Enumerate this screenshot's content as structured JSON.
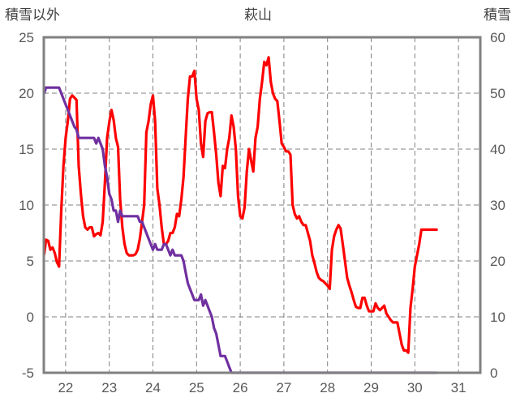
{
  "chart_data": {
    "type": "line",
    "title": "萩山",
    "y_left_label": "積雪以外",
    "y_right_label": "積雪",
    "y_left_range": [
      -5,
      25
    ],
    "y_left_ticks": [
      "-5",
      "0",
      "5",
      "10",
      "15",
      "20",
      "25"
    ],
    "y_right_range": [
      0,
      60
    ],
    "y_right_ticks": [
      "0",
      "10",
      "20",
      "30",
      "40",
      "50",
      "60"
    ],
    "x_range": [
      21.5,
      31.5
    ],
    "x_ticks": [
      {
        "x": 22,
        "label": "22"
      },
      {
        "x": 23,
        "label": "23"
      },
      {
        "x": 24,
        "label": "24"
      },
      {
        "x": 25,
        "label": "25"
      },
      {
        "x": 26,
        "label": "26"
      },
      {
        "x": 27,
        "label": "27"
      },
      {
        "x": 28,
        "label": "28"
      },
      {
        "x": 29,
        "label": "29"
      },
      {
        "x": 30,
        "label": "30"
      },
      {
        "x": 31,
        "label": "31"
      }
    ],
    "grid": {
      "vertical": "dashed",
      "horizontal": "dashed"
    },
    "series": [
      {
        "color": "#ff0000",
        "axis": "left",
        "points": [
          [
            21.51,
            5.6
          ],
          [
            21.55,
            6.9
          ],
          [
            21.6,
            6.8
          ],
          [
            21.65,
            6.0
          ],
          [
            21.7,
            6.2
          ],
          [
            21.75,
            5.7
          ],
          [
            21.8,
            4.9
          ],
          [
            21.85,
            4.5
          ],
          [
            21.9,
            9.5
          ],
          [
            21.95,
            13.5
          ],
          [
            22.0,
            16.0
          ],
          [
            22.05,
            17.5
          ],
          [
            22.1,
            19.5
          ],
          [
            22.15,
            19.8
          ],
          [
            22.2,
            19.6
          ],
          [
            22.25,
            19.4
          ],
          [
            22.3,
            13.5
          ],
          [
            22.35,
            11.0
          ],
          [
            22.4,
            9.0
          ],
          [
            22.45,
            8.0
          ],
          [
            22.5,
            7.8
          ],
          [
            22.55,
            8.0
          ],
          [
            22.6,
            8.0
          ],
          [
            22.65,
            7.2
          ],
          [
            22.7,
            7.4
          ],
          [
            22.75,
            7.5
          ],
          [
            22.8,
            7.3
          ],
          [
            22.85,
            8.5
          ],
          [
            22.9,
            12.0
          ],
          [
            22.95,
            16.0
          ],
          [
            23.0,
            17.4
          ],
          [
            23.05,
            18.5
          ],
          [
            23.1,
            17.6
          ],
          [
            23.15,
            16.0
          ],
          [
            23.2,
            15.2
          ],
          [
            23.25,
            10.5
          ],
          [
            23.3,
            8.0
          ],
          [
            23.35,
            6.5
          ],
          [
            23.4,
            5.7
          ],
          [
            23.45,
            5.5
          ],
          [
            23.5,
            5.5
          ],
          [
            23.55,
            5.5
          ],
          [
            23.6,
            5.6
          ],
          [
            23.65,
            6.0
          ],
          [
            23.7,
            7.0
          ],
          [
            23.75,
            8.5
          ],
          [
            23.8,
            10.0
          ],
          [
            23.85,
            16.5
          ],
          [
            23.9,
            17.5
          ],
          [
            23.95,
            19.0
          ],
          [
            24.0,
            19.8
          ],
          [
            24.05,
            17.5
          ],
          [
            24.1,
            11.5
          ],
          [
            24.15,
            10.0
          ],
          [
            24.2,
            8.0
          ],
          [
            24.25,
            6.5
          ],
          [
            24.3,
            6.5
          ],
          [
            24.35,
            6.8
          ],
          [
            24.4,
            7.5
          ],
          [
            24.45,
            7.5
          ],
          [
            24.5,
            8.0
          ],
          [
            24.55,
            9.2
          ],
          [
            24.6,
            9.0
          ],
          [
            24.65,
            10.5
          ],
          [
            24.7,
            12.5
          ],
          [
            24.75,
            16.0
          ],
          [
            24.8,
            19.5
          ],
          [
            24.85,
            21.5
          ],
          [
            24.9,
            21.5
          ],
          [
            24.95,
            22.0
          ],
          [
            25.0,
            19.5
          ],
          [
            25.05,
            18.5
          ],
          [
            25.1,
            15.5
          ],
          [
            25.15,
            14.3
          ],
          [
            25.2,
            17.5
          ],
          [
            25.25,
            18.2
          ],
          [
            25.3,
            18.3
          ],
          [
            25.35,
            18.3
          ],
          [
            25.4,
            16.5
          ],
          [
            25.45,
            14.5
          ],
          [
            25.5,
            12.0
          ],
          [
            25.55,
            10.8
          ],
          [
            25.6,
            13.5
          ],
          [
            25.65,
            13.3
          ],
          [
            25.7,
            15.0
          ],
          [
            25.75,
            16.0
          ],
          [
            25.8,
            18.0
          ],
          [
            25.85,
            17.0
          ],
          [
            25.9,
            15.0
          ],
          [
            25.95,
            10.8
          ],
          [
            26.0,
            9.0
          ],
          [
            26.05,
            8.8
          ],
          [
            26.1,
            9.8
          ],
          [
            26.15,
            13.0
          ],
          [
            26.2,
            15.0
          ],
          [
            26.25,
            14.0
          ],
          [
            26.3,
            13.0
          ],
          [
            26.35,
            16.0
          ],
          [
            26.4,
            17.0
          ],
          [
            26.45,
            19.5
          ],
          [
            26.5,
            21.0
          ],
          [
            26.55,
            22.8
          ],
          [
            26.6,
            22.5
          ],
          [
            26.65,
            23.2
          ],
          [
            26.7,
            21.0
          ],
          [
            26.75,
            20.0
          ],
          [
            26.8,
            19.5
          ],
          [
            26.85,
            19.3
          ],
          [
            26.9,
            17.5
          ],
          [
            26.95,
            15.5
          ],
          [
            27.0,
            15.2
          ],
          [
            27.05,
            14.8
          ],
          [
            27.1,
            14.8
          ],
          [
            27.15,
            14.5
          ],
          [
            27.2,
            10.0
          ],
          [
            27.25,
            9.2
          ],
          [
            27.3,
            8.8
          ],
          [
            27.35,
            9.0
          ],
          [
            27.4,
            8.5
          ],
          [
            27.45,
            8.2
          ],
          [
            27.5,
            8.2
          ],
          [
            27.55,
            7.5
          ],
          [
            27.6,
            6.8
          ],
          [
            27.65,
            5.5
          ],
          [
            27.7,
            4.8
          ],
          [
            27.75,
            4.0
          ],
          [
            27.8,
            3.5
          ],
          [
            27.85,
            3.3
          ],
          [
            27.9,
            3.2
          ],
          [
            27.95,
            3.0
          ],
          [
            28.0,
            2.8
          ],
          [
            28.05,
            2.5
          ],
          [
            28.1,
            6.0
          ],
          [
            28.15,
            7.2
          ],
          [
            28.2,
            7.8
          ],
          [
            28.25,
            8.2
          ],
          [
            28.3,
            7.9
          ],
          [
            28.35,
            6.5
          ],
          [
            28.4,
            5.0
          ],
          [
            28.45,
            3.5
          ],
          [
            28.5,
            2.8
          ],
          [
            28.55,
            2.2
          ],
          [
            28.6,
            1.5
          ],
          [
            28.65,
            0.9
          ],
          [
            28.7,
            0.8
          ],
          [
            28.75,
            0.8
          ],
          [
            28.8,
            1.7
          ],
          [
            28.85,
            1.7
          ],
          [
            28.9,
            1.0
          ],
          [
            28.95,
            0.5
          ],
          [
            29.0,
            0.5
          ],
          [
            29.05,
            0.5
          ],
          [
            29.1,
            1.2
          ],
          [
            29.15,
            0.8
          ],
          [
            29.2,
            0.6
          ],
          [
            29.25,
            0.8
          ],
          [
            29.3,
            1.0
          ],
          [
            29.35,
            0.3
          ],
          [
            29.4,
            0.0
          ],
          [
            29.45,
            -0.3
          ],
          [
            29.5,
            -0.5
          ],
          [
            29.55,
            -0.5
          ],
          [
            29.6,
            -0.5
          ],
          [
            29.65,
            -1.5
          ],
          [
            29.7,
            -2.5
          ],
          [
            29.75,
            -3.0
          ],
          [
            29.8,
            -3.0
          ],
          [
            29.85,
            -3.2
          ],
          [
            29.9,
            0.8
          ],
          [
            29.95,
            2.5
          ],
          [
            30.0,
            4.5
          ],
          [
            30.05,
            5.5
          ],
          [
            30.1,
            6.5
          ],
          [
            30.15,
            7.8
          ],
          [
            30.2,
            7.8
          ],
          [
            30.25,
            7.8
          ],
          [
            30.3,
            7.8
          ],
          [
            30.35,
            7.8
          ],
          [
            30.4,
            7.8
          ],
          [
            30.45,
            7.8
          ],
          [
            30.5,
            7.8
          ]
        ]
      },
      {
        "color": "#7030a0",
        "axis": "right",
        "points": [
          [
            21.51,
            50
          ],
          [
            21.55,
            51
          ],
          [
            21.6,
            51
          ],
          [
            21.65,
            51
          ],
          [
            21.7,
            51
          ],
          [
            21.75,
            51
          ],
          [
            21.8,
            51
          ],
          [
            21.85,
            51
          ],
          [
            21.9,
            50
          ],
          [
            21.95,
            49
          ],
          [
            22.0,
            48
          ],
          [
            22.05,
            47
          ],
          [
            22.1,
            46
          ],
          [
            22.15,
            45
          ],
          [
            22.2,
            44
          ],
          [
            22.25,
            43.5
          ],
          [
            22.3,
            42
          ],
          [
            22.35,
            42
          ],
          [
            22.4,
            42
          ],
          [
            22.45,
            42
          ],
          [
            22.5,
            42
          ],
          [
            22.55,
            42
          ],
          [
            22.6,
            42
          ],
          [
            22.65,
            42
          ],
          [
            22.7,
            41
          ],
          [
            22.75,
            42
          ],
          [
            22.8,
            41
          ],
          [
            22.85,
            40
          ],
          [
            22.9,
            37
          ],
          [
            22.95,
            35
          ],
          [
            23.0,
            32
          ],
          [
            23.05,
            31
          ],
          [
            23.1,
            29
          ],
          [
            23.15,
            29
          ],
          [
            23.2,
            27
          ],
          [
            23.25,
            29
          ],
          [
            23.3,
            28
          ],
          [
            23.35,
            28
          ],
          [
            23.4,
            28
          ],
          [
            23.45,
            28
          ],
          [
            23.5,
            28
          ],
          [
            23.55,
            28
          ],
          [
            23.6,
            28
          ],
          [
            23.65,
            28
          ],
          [
            23.7,
            27
          ],
          [
            23.75,
            27
          ],
          [
            23.8,
            26
          ],
          [
            23.85,
            25
          ],
          [
            23.9,
            24
          ],
          [
            23.95,
            23
          ],
          [
            24.0,
            22
          ],
          [
            24.05,
            23
          ],
          [
            24.1,
            22
          ],
          [
            24.15,
            22
          ],
          [
            24.2,
            22
          ],
          [
            24.25,
            23
          ],
          [
            24.3,
            23
          ],
          [
            24.35,
            22
          ],
          [
            24.4,
            21
          ],
          [
            24.45,
            22
          ],
          [
            24.5,
            21
          ],
          [
            24.55,
            21
          ],
          [
            24.6,
            21
          ],
          [
            24.65,
            21
          ],
          [
            24.7,
            20
          ],
          [
            24.75,
            18
          ],
          [
            24.8,
            16
          ],
          [
            24.85,
            15
          ],
          [
            24.9,
            14
          ],
          [
            24.95,
            13
          ],
          [
            25.0,
            13
          ],
          [
            25.05,
            13
          ],
          [
            25.1,
            14
          ],
          [
            25.15,
            12
          ],
          [
            25.2,
            13
          ],
          [
            25.25,
            12
          ],
          [
            25.3,
            11
          ],
          [
            25.35,
            10
          ],
          [
            25.4,
            8
          ],
          [
            25.45,
            7
          ],
          [
            25.5,
            5
          ],
          [
            25.55,
            3
          ],
          [
            25.6,
            3
          ],
          [
            25.65,
            3
          ],
          [
            25.7,
            2
          ],
          [
            25.75,
            1
          ],
          [
            25.8,
            0
          ],
          [
            25.9,
            0
          ],
          [
            26.0,
            0
          ],
          [
            27.0,
            0
          ],
          [
            28.0,
            0
          ],
          [
            29.0,
            0
          ],
          [
            30.0,
            0
          ],
          [
            30.5,
            0
          ]
        ]
      }
    ]
  }
}
